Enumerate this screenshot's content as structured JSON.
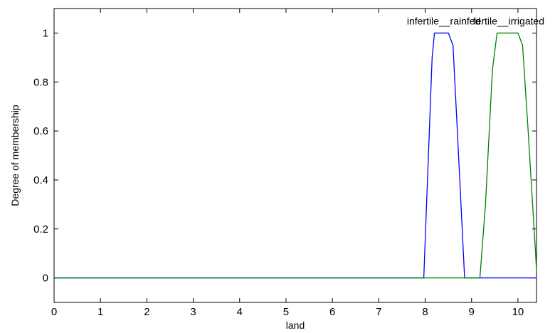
{
  "chart_data": {
    "type": "line",
    "title": "",
    "xlabel": "land",
    "ylabel": "Degree of membership",
    "xlim": [
      0,
      10.4
    ],
    "ylim": [
      -0.1,
      1.1
    ],
    "xticks": [
      0,
      1,
      2,
      3,
      4,
      5,
      6,
      7,
      8,
      9,
      10
    ],
    "xtick_labels": [
      "0",
      "1",
      "2",
      "3",
      "4",
      "5",
      "6",
      "7",
      "8",
      "9",
      "10"
    ],
    "yticks": [
      0,
      0.2,
      0.4,
      0.6,
      0.8,
      1
    ],
    "ytick_labels": [
      "0",
      "0.2",
      "0.4",
      "0.6",
      "0.8",
      "1"
    ],
    "grid": false,
    "legend": "none",
    "series": [
      {
        "name": "infertile__rainfed",
        "color": "#0000ff",
        "x": [
          0,
          7.97,
          8.05,
          8.15,
          8.2,
          8.5,
          8.6,
          8.72,
          8.85,
          10.4
        ],
        "y": [
          0,
          0,
          0.4,
          0.9,
          1,
          1,
          0.95,
          0.5,
          0,
          0
        ]
      },
      {
        "name": "fertile__irrigated",
        "color": "#008000",
        "x": [
          0,
          9.18,
          9.3,
          9.45,
          9.55,
          10.0,
          10.1,
          10.22,
          10.38,
          10.4
        ],
        "y": [
          0,
          0,
          0.3,
          0.85,
          1,
          1,
          0.95,
          0.6,
          0.1,
          0.03
        ]
      }
    ],
    "annotations": [
      {
        "text": "infertile__rainfed",
        "x": 8.4,
        "y": 1.035
      },
      {
        "text": "fertile__irrigated",
        "x": 9.8,
        "y": 1.035
      }
    ]
  }
}
